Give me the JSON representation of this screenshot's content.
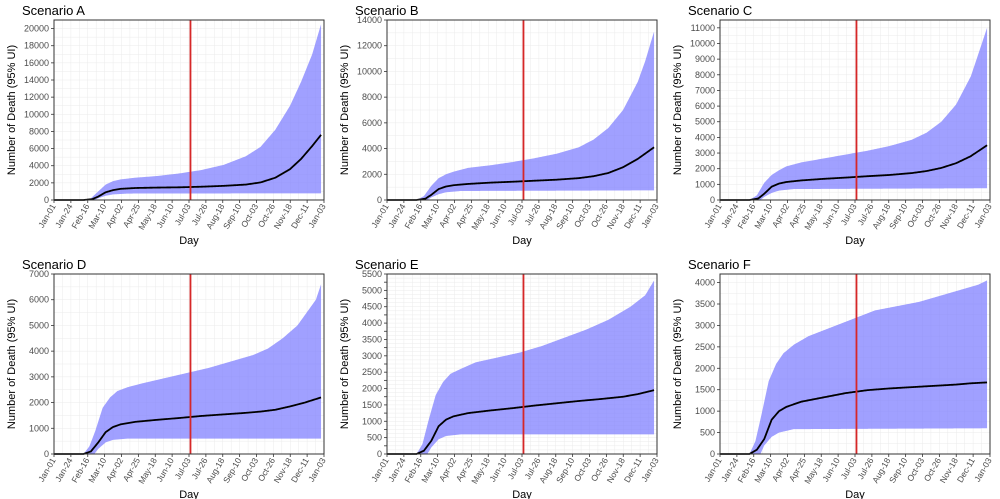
{
  "chart_data": [
    {
      "type": "area",
      "title": "Scenario A",
      "xlabel": "Day",
      "ylabel": "Number of Death (95% UI)",
      "x_ticks": [
        "Jan-01",
        "Jan-24",
        "Feb-16",
        "Mar-10",
        "Apr-02",
        "Apr-25",
        "May-18",
        "Jun-10",
        "Jul-03",
        "Jul-26",
        "Aug-18",
        "Sep-10",
        "Oct-03",
        "Oct-26",
        "Nov-18",
        "Dec-11",
        "Jan-03"
      ],
      "ylim": [
        0,
        21000
      ],
      "y_ticks": [
        0,
        2000,
        4000,
        6000,
        8000,
        10000,
        12000,
        14000,
        16000,
        18000,
        20000
      ],
      "vline_x": 185,
      "vline_color": "#d62728",
      "band_color": "#7b7bff",
      "line_color": "#000000",
      "grid": true,
      "series": [
        {
          "name": "mean",
          "x": [
            0,
            40,
            52,
            60,
            70,
            80,
            90,
            110,
            140,
            170,
            200,
            230,
            260,
            280,
            300,
            320,
            335,
            350,
            362
          ],
          "values": [
            0,
            0,
            100,
            400,
            900,
            1150,
            1300,
            1400,
            1450,
            1480,
            1550,
            1650,
            1800,
            2050,
            2600,
            3600,
            4800,
            6300,
            7600
          ]
        },
        {
          "name": "upper",
          "x": [
            0,
            40,
            50,
            60,
            70,
            80,
            90,
            110,
            140,
            170,
            200,
            230,
            260,
            280,
            300,
            320,
            335,
            350,
            362
          ],
          "values": [
            0,
            0,
            200,
            1000,
            1800,
            2200,
            2400,
            2600,
            2800,
            3100,
            3500,
            4100,
            5100,
            6200,
            8200,
            11000,
            13800,
            17000,
            20500
          ]
        },
        {
          "name": "lower",
          "x": [
            0,
            40,
            55,
            60,
            70,
            80,
            100,
            362
          ],
          "values": [
            0,
            0,
            10,
            200,
            500,
            650,
            750,
            780
          ]
        }
      ]
    },
    {
      "type": "area",
      "title": "Scenario B",
      "xlabel": "Day",
      "ylabel": "Number of Death (95% UI)",
      "x_ticks": [
        "Jan-01",
        "Jan-24",
        "Feb-16",
        "Mar-10",
        "Apr-02",
        "Apr-25",
        "May-18",
        "Jun-10",
        "Jul-03",
        "Jul-26",
        "Aug-18",
        "Sep-10",
        "Oct-03",
        "Oct-26",
        "Nov-18",
        "Dec-11",
        "Jan-03"
      ],
      "ylim": [
        0,
        14000
      ],
      "y_ticks": [
        0,
        2000,
        4000,
        6000,
        8000,
        10000,
        12000,
        14000
      ],
      "vline_x": 185,
      "vline_color": "#d62728",
      "band_color": "#7b7bff",
      "line_color": "#000000",
      "grid": true,
      "series": [
        {
          "name": "mean",
          "x": [
            0,
            40,
            52,
            60,
            70,
            80,
            90,
            110,
            140,
            170,
            200,
            230,
            260,
            280,
            300,
            320,
            340,
            362
          ],
          "values": [
            0,
            0,
            100,
            400,
            850,
            1050,
            1150,
            1250,
            1350,
            1420,
            1500,
            1580,
            1700,
            1850,
            2100,
            2550,
            3200,
            4100
          ]
        },
        {
          "name": "upper",
          "x": [
            0,
            40,
            50,
            60,
            70,
            80,
            90,
            110,
            140,
            170,
            200,
            230,
            260,
            280,
            300,
            320,
            340,
            350,
            362
          ],
          "values": [
            0,
            0,
            300,
            1100,
            1700,
            2000,
            2200,
            2500,
            2700,
            2950,
            3250,
            3600,
            4100,
            4700,
            5600,
            7000,
            9200,
            10800,
            13100
          ]
        },
        {
          "name": "lower",
          "x": [
            0,
            40,
            55,
            60,
            70,
            80,
            100,
            362
          ],
          "values": [
            0,
            0,
            10,
            200,
            450,
            600,
            700,
            750
          ]
        }
      ]
    },
    {
      "type": "area",
      "title": "Scenario C",
      "xlabel": "Day",
      "ylabel": "Number of Death (95% UI)",
      "x_ticks": [
        "Jan-01",
        "Jan-24",
        "Feb-16",
        "Mar-10",
        "Apr-02",
        "Apr-25",
        "May-18",
        "Jun-10",
        "Jul-03",
        "Jul-26",
        "Aug-18",
        "Sep-10",
        "Oct-03",
        "Oct-26",
        "Nov-18",
        "Dec-11",
        "Jan-03"
      ],
      "ylim": [
        0,
        11500
      ],
      "y_ticks": [
        0,
        1000,
        2000,
        3000,
        4000,
        5000,
        6000,
        7000,
        8000,
        9000,
        10000,
        11000
      ],
      "vline_x": 185,
      "vline_color": "#d62728",
      "band_color": "#7b7bff",
      "line_color": "#000000",
      "grid": true,
      "series": [
        {
          "name": "mean",
          "x": [
            0,
            40,
            52,
            60,
            70,
            80,
            90,
            110,
            140,
            170,
            200,
            230,
            260,
            280,
            300,
            320,
            340,
            362
          ],
          "values": [
            0,
            0,
            100,
            400,
            850,
            1050,
            1150,
            1250,
            1350,
            1430,
            1520,
            1600,
            1720,
            1850,
            2050,
            2350,
            2800,
            3500
          ]
        },
        {
          "name": "upper",
          "x": [
            0,
            40,
            50,
            60,
            70,
            80,
            90,
            110,
            140,
            170,
            200,
            230,
            260,
            280,
            300,
            320,
            340,
            350,
            362
          ],
          "values": [
            0,
            0,
            300,
            1100,
            1600,
            1900,
            2150,
            2400,
            2650,
            2900,
            3150,
            3450,
            3850,
            4300,
            5000,
            6100,
            7900,
            9300,
            11000
          ]
        },
        {
          "name": "lower",
          "x": [
            0,
            40,
            55,
            60,
            70,
            80,
            100,
            362
          ],
          "values": [
            0,
            0,
            10,
            200,
            450,
            600,
            700,
            750
          ]
        }
      ]
    },
    {
      "type": "area",
      "title": "Scenario D",
      "xlabel": "Day",
      "ylabel": "Number of Death (95% UI)",
      "x_ticks": [
        "Jan-01",
        "Jan-24",
        "Feb-16",
        "Mar-10",
        "Apr-02",
        "Apr-25",
        "May-18",
        "Jun-10",
        "Jul-03",
        "Jul-26",
        "Aug-18",
        "Sep-10",
        "Oct-03",
        "Oct-26",
        "Nov-18",
        "Dec-11",
        "Jan-03"
      ],
      "ylim": [
        0,
        7000
      ],
      "y_ticks": [
        0,
        1000,
        2000,
        3000,
        4000,
        5000,
        6000,
        7000
      ],
      "vline_x": 185,
      "vline_color": "#d62728",
      "band_color": "#7b7bff",
      "line_color": "#000000",
      "grid": true,
      "series": [
        {
          "name": "mean",
          "x": [
            0,
            40,
            50,
            60,
            70,
            80,
            90,
            110,
            140,
            170,
            200,
            230,
            260,
            280,
            300,
            320,
            340,
            362
          ],
          "values": [
            0,
            0,
            100,
            450,
            850,
            1050,
            1150,
            1250,
            1330,
            1400,
            1480,
            1540,
            1600,
            1650,
            1720,
            1850,
            2000,
            2200
          ]
        },
        {
          "name": "upper",
          "x": [
            0,
            40,
            48,
            56,
            66,
            76,
            86,
            100,
            120,
            150,
            180,
            210,
            240,
            270,
            290,
            310,
            330,
            345,
            355,
            362
          ],
          "values": [
            0,
            0,
            300,
            900,
            1800,
            2200,
            2450,
            2600,
            2750,
            2950,
            3150,
            3350,
            3600,
            3850,
            4100,
            4500,
            5000,
            5600,
            6000,
            6600
          ]
        },
        {
          "name": "lower",
          "x": [
            0,
            40,
            55,
            60,
            70,
            80,
            100,
            362
          ],
          "values": [
            0,
            0,
            10,
            200,
            450,
            550,
            600,
            600
          ]
        }
      ]
    },
    {
      "type": "area",
      "title": "Scenario E",
      "xlabel": "Day",
      "ylabel": "Number of Death (95% UI)",
      "x_ticks": [
        "Jan-01",
        "Jan-24",
        "Feb-16",
        "Mar-10",
        "Apr-02",
        "Apr-25",
        "May-18",
        "Jun-10",
        "Jul-03",
        "Jul-26",
        "Aug-18",
        "Sep-10",
        "Oct-03",
        "Oct-26",
        "Nov-18",
        "Dec-11",
        "Jan-03"
      ],
      "ylim": [
        0,
        5500
      ],
      "y_ticks": [
        0,
        250,
        500,
        750,
        1000,
        1250,
        1500,
        1750,
        2000,
        2250,
        2500,
        2750,
        3000,
        3250,
        3500,
        3750,
        4000,
        4250,
        4500,
        4750,
        5000,
        5250,
        5500
      ],
      "y_tick_labels": [
        "0",
        "",
        "500",
        "",
        "1000",
        "",
        "1500",
        "",
        "2000",
        "",
        "2500",
        "",
        "3000",
        "",
        "3500",
        "",
        "4000",
        "",
        "4500",
        "",
        "5000",
        "",
        "5500"
      ],
      "vline_x": 185,
      "vline_color": "#d62728",
      "band_color": "#7b7bff",
      "line_color": "#000000",
      "grid": true,
      "series": [
        {
          "name": "mean",
          "x": [
            0,
            40,
            50,
            60,
            70,
            80,
            90,
            110,
            140,
            170,
            200,
            230,
            260,
            290,
            320,
            340,
            362
          ],
          "values": [
            0,
            0,
            100,
            400,
            850,
            1050,
            1150,
            1250,
            1330,
            1400,
            1480,
            1550,
            1620,
            1680,
            1750,
            1830,
            1950
          ]
        },
        {
          "name": "upper",
          "x": [
            0,
            40,
            48,
            56,
            66,
            76,
            86,
            100,
            120,
            150,
            180,
            210,
            240,
            270,
            300,
            330,
            350,
            362
          ],
          "values": [
            0,
            0,
            300,
            1000,
            1800,
            2200,
            2450,
            2600,
            2800,
            2950,
            3100,
            3300,
            3550,
            3800,
            4100,
            4500,
            4850,
            5300
          ]
        },
        {
          "name": "lower",
          "x": [
            0,
            40,
            55,
            60,
            70,
            80,
            100,
            362
          ],
          "values": [
            0,
            0,
            10,
            200,
            450,
            550,
            600,
            600
          ]
        }
      ]
    },
    {
      "type": "area",
      "title": "Scenario F",
      "xlabel": "Day",
      "ylabel": "Number of Death (95% UI)",
      "x_ticks": [
        "Jan-01",
        "Jan-24",
        "Feb-16",
        "Mar-10",
        "Apr-02",
        "Apr-25",
        "May-18",
        "Jun-10",
        "Jul-03",
        "Jul-26",
        "Aug-18",
        "Sep-10",
        "Oct-03",
        "Oct-26",
        "Nov-18",
        "Dec-11",
        "Jan-03"
      ],
      "ylim": [
        0,
        4200
      ],
      "y_ticks": [
        0,
        500,
        1000,
        1500,
        2000,
        2500,
        3000,
        3500,
        4000
      ],
      "vline_x": 185,
      "vline_color": "#d62728",
      "band_color": "#7b7bff",
      "line_color": "#000000",
      "grid": true,
      "series": [
        {
          "name": "mean",
          "x": [
            0,
            40,
            50,
            60,
            70,
            80,
            90,
            110,
            140,
            170,
            200,
            230,
            260,
            290,
            320,
            340,
            362
          ],
          "values": [
            0,
            0,
            100,
            350,
            800,
            1000,
            1100,
            1220,
            1320,
            1420,
            1490,
            1530,
            1560,
            1590,
            1620,
            1650,
            1670
          ]
        },
        {
          "name": "upper",
          "x": [
            0,
            40,
            48,
            56,
            66,
            76,
            86,
            100,
            120,
            150,
            180,
            210,
            240,
            270,
            300,
            330,
            350,
            362
          ],
          "values": [
            0,
            0,
            300,
            900,
            1700,
            2100,
            2350,
            2550,
            2750,
            2950,
            3150,
            3350,
            3450,
            3550,
            3700,
            3850,
            3950,
            4050
          ]
        },
        {
          "name": "lower",
          "x": [
            0,
            40,
            55,
            60,
            70,
            80,
            100,
            362
          ],
          "values": [
            0,
            0,
            10,
            200,
            400,
            500,
            580,
            600
          ]
        }
      ]
    }
  ]
}
